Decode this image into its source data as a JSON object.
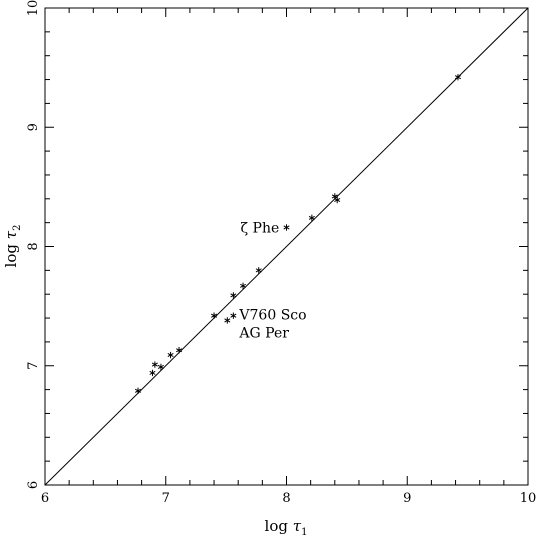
{
  "chart_data": {
    "type": "scatter",
    "title": "",
    "xlabel_text": "log",
    "xlabel_symbol": "τ",
    "xlabel_subscript": "1",
    "ylabel_text": "log",
    "ylabel_symbol": "τ",
    "ylabel_subscript": "2",
    "xlim": [
      6,
      10
    ],
    "ylim": [
      6,
      10
    ],
    "xticks": [
      6,
      7,
      8,
      9,
      10
    ],
    "yticks": [
      6,
      7,
      8,
      9,
      10
    ],
    "xtick_labels": [
      "6",
      "7",
      "8",
      "9",
      "10"
    ],
    "ytick_labels": [
      "6",
      "7",
      "8",
      "9",
      "10"
    ],
    "grid": false,
    "reference_line": {
      "x": [
        6,
        10
      ],
      "y": [
        6,
        10
      ]
    },
    "marker": "asterisk",
    "points": [
      {
        "x": 6.77,
        "y": 6.79
      },
      {
        "x": 6.89,
        "y": 6.94
      },
      {
        "x": 6.91,
        "y": 7.01
      },
      {
        "x": 6.96,
        "y": 6.99
      },
      {
        "x": 7.04,
        "y": 7.09
      },
      {
        "x": 7.11,
        "y": 7.13
      },
      {
        "x": 7.4,
        "y": 7.42
      },
      {
        "x": 7.51,
        "y": 7.38
      },
      {
        "x": 7.56,
        "y": 7.42
      },
      {
        "x": 7.56,
        "y": 7.59
      },
      {
        "x": 7.64,
        "y": 7.67
      },
      {
        "x": 7.77,
        "y": 7.8
      },
      {
        "x": 8.0,
        "y": 8.16
      },
      {
        "x": 8.21,
        "y": 8.24
      },
      {
        "x": 8.4,
        "y": 8.42
      },
      {
        "x": 8.42,
        "y": 8.39
      },
      {
        "x": 9.42,
        "y": 9.42
      }
    ],
    "annotations": [
      {
        "text": "ζ Phe",
        "x": 7.94,
        "y": 8.16
      },
      {
        "text": "V760 Sco",
        "x": 7.61,
        "y": 7.43
      },
      {
        "text": "AG Per",
        "x": 7.61,
        "y": 7.28
      }
    ]
  }
}
